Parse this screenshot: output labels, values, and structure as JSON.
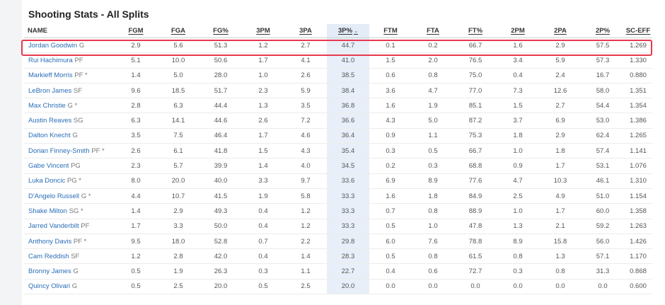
{
  "page": {
    "title": "Shooting Stats - All Splits"
  },
  "table": {
    "columns": [
      "NAME",
      "FGM",
      "FGA",
      "FG%",
      "3PM",
      "3PA",
      "3P%",
      "FTM",
      "FTA",
      "FT%",
      "2PM",
      "2PA",
      "2P%",
      "SC-EFF"
    ],
    "sort_indicator": "⌄",
    "rows": [
      {
        "name": "Jordan Goodwin",
        "pos": "G",
        "stats": [
          "2.9",
          "5.6",
          "51.3",
          "1.2",
          "2.7",
          "44.7",
          "0.1",
          "0.2",
          "66.7",
          "1.6",
          "2.9",
          "57.5",
          "1.269"
        ]
      },
      {
        "name": "Rui Hachimura",
        "pos": "PF",
        "stats": [
          "5.1",
          "10.0",
          "50.6",
          "1.7",
          "4.1",
          "41.0",
          "1.5",
          "2.0",
          "76.5",
          "3.4",
          "5.9",
          "57.3",
          "1.330"
        ]
      },
      {
        "name": "Markieff Morris",
        "pos": "PF *",
        "stats": [
          "1.4",
          "5.0",
          "28.0",
          "1.0",
          "2.6",
          "38.5",
          "0.6",
          "0.8",
          "75.0",
          "0.4",
          "2.4",
          "16.7",
          "0.880"
        ]
      },
      {
        "name": "LeBron James",
        "pos": "SF",
        "stats": [
          "9.6",
          "18.5",
          "51.7",
          "2.3",
          "5.9",
          "38.4",
          "3.6",
          "4.7",
          "77.0",
          "7.3",
          "12.6",
          "58.0",
          "1.351"
        ]
      },
      {
        "name": "Max Christie",
        "pos": "G *",
        "stats": [
          "2.8",
          "6.3",
          "44.4",
          "1.3",
          "3.5",
          "36.8",
          "1.6",
          "1.9",
          "85.1",
          "1.5",
          "2.7",
          "54.4",
          "1.354"
        ]
      },
      {
        "name": "Austin Reaves",
        "pos": "SG",
        "stats": [
          "6.3",
          "14.1",
          "44.6",
          "2.6",
          "7.2",
          "36.6",
          "4.3",
          "5.0",
          "87.2",
          "3.7",
          "6.9",
          "53.0",
          "1.386"
        ]
      },
      {
        "name": "Dalton Knecht",
        "pos": "G",
        "stats": [
          "3.5",
          "7.5",
          "46.4",
          "1.7",
          "4.6",
          "36.4",
          "0.9",
          "1.1",
          "75.3",
          "1.8",
          "2.9",
          "62.4",
          "1.265"
        ]
      },
      {
        "name": "Dorian Finney-Smith",
        "pos": "PF *",
        "stats": [
          "2.6",
          "6.1",
          "41.8",
          "1.5",
          "4.3",
          "35.4",
          "0.3",
          "0.5",
          "66.7",
          "1.0",
          "1.8",
          "57.4",
          "1.141"
        ]
      },
      {
        "name": "Gabe Vincent",
        "pos": "PG",
        "stats": [
          "2.3",
          "5.7",
          "39.9",
          "1.4",
          "4.0",
          "34.5",
          "0.2",
          "0.3",
          "68.8",
          "0.9",
          "1.7",
          "53.1",
          "1.076"
        ]
      },
      {
        "name": "Luka Doncic",
        "pos": "PG *",
        "stats": [
          "8.0",
          "20.0",
          "40.0",
          "3.3",
          "9.7",
          "33.6",
          "6.9",
          "8.9",
          "77.6",
          "4.7",
          "10.3",
          "46.1",
          "1.310"
        ]
      },
      {
        "name": "D'Angelo Russell",
        "pos": "G *",
        "stats": [
          "4.4",
          "10.7",
          "41.5",
          "1.9",
          "5.8",
          "33.3",
          "1.6",
          "1.8",
          "84.9",
          "2.5",
          "4.9",
          "51.0",
          "1.154"
        ]
      },
      {
        "name": "Shake Milton",
        "pos": "SG *",
        "stats": [
          "1.4",
          "2.9",
          "49.3",
          "0.4",
          "1.2",
          "33.3",
          "0.7",
          "0.8",
          "88.9",
          "1.0",
          "1.7",
          "60.0",
          "1.358"
        ]
      },
      {
        "name": "Jarred Vanderbilt",
        "pos": "PF",
        "stats": [
          "1.7",
          "3.3",
          "50.0",
          "0.4",
          "1.2",
          "33.3",
          "0.5",
          "1.0",
          "47.8",
          "1.3",
          "2.1",
          "59.2",
          "1.263"
        ]
      },
      {
        "name": "Anthony Davis",
        "pos": "PF *",
        "stats": [
          "9.5",
          "18.0",
          "52.8",
          "0.7",
          "2.2",
          "29.8",
          "6.0",
          "7.6",
          "78.8",
          "8.9",
          "15.8",
          "56.0",
          "1.426"
        ]
      },
      {
        "name": "Cam Reddish",
        "pos": "SF",
        "stats": [
          "1.2",
          "2.8",
          "42.0",
          "0.4",
          "1.4",
          "28.3",
          "0.5",
          "0.8",
          "61.5",
          "0.8",
          "1.3",
          "57.1",
          "1.170"
        ]
      },
      {
        "name": "Bronny James",
        "pos": "G",
        "stats": [
          "0.5",
          "1.9",
          "26.3",
          "0.3",
          "1.1",
          "22.7",
          "0.4",
          "0.6",
          "72.7",
          "0.3",
          "0.8",
          "31.3",
          "0.868"
        ]
      },
      {
        "name": "Quincy Olivari",
        "pos": "G",
        "stats": [
          "0.5",
          "2.5",
          "20.0",
          "0.5",
          "2.5",
          "20.0",
          "0.0",
          "0.0",
          "0.0",
          "0.0",
          "0.0",
          "0.0",
          "0.600"
        ]
      }
    ]
  },
  "colors": {
    "highlight": "#e8384f",
    "link": "#2a6eb8",
    "sorted_column_bg": "#e8eff9"
  }
}
